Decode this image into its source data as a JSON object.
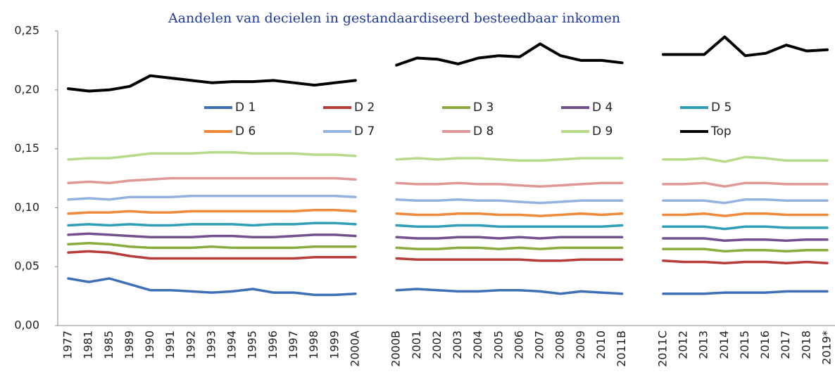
{
  "chart_data": {
    "type": "line",
    "title": "Aandelen van decielen in gestandaardiseerd besteedbaar inkomen",
    "categories": [
      "1977",
      "1981",
      "1985",
      "1989",
      "1990",
      "1991",
      "1992",
      "1993",
      "1994",
      "1995",
      "1996",
      "1997",
      "1998",
      "1999",
      "2000A",
      null,
      "2000B",
      "2001",
      "2002",
      "2003",
      "2004",
      "2005",
      "2006",
      "2007",
      "2008",
      "2009",
      "2010",
      "2011B",
      null,
      "2011C",
      "2012",
      "2013",
      "2014",
      "2015",
      "2016",
      "2017",
      "2018",
      "2019*"
    ],
    "ylim": [
      0,
      0.25
    ],
    "yticks": [
      {
        "value": 0,
        "label": "0,00"
      },
      {
        "value": 0.05,
        "label": "0,05"
      },
      {
        "value": 0.1,
        "label": "0,10"
      },
      {
        "value": 0.15,
        "label": "0,15"
      },
      {
        "value": 0.2,
        "label": "0,20"
      },
      {
        "value": 0.25,
        "label": "0,25"
      }
    ],
    "grid": false,
    "legend": "center",
    "series": [
      {
        "name": "D 1",
        "color": "#3f6fb5",
        "values": [
          0.04,
          0.037,
          0.04,
          0.035,
          0.03,
          0.03,
          0.029,
          0.028,
          0.029,
          0.031,
          0.028,
          0.028,
          0.026,
          0.026,
          0.027,
          null,
          0.03,
          0.031,
          0.03,
          0.029,
          0.029,
          0.03,
          0.03,
          0.029,
          0.027,
          0.029,
          0.028,
          0.027,
          null,
          0.027,
          0.027,
          0.027,
          0.028,
          0.028,
          0.028,
          0.029,
          0.029,
          0.029
        ]
      },
      {
        "name": "D 2",
        "color": "#b83d3a",
        "values": [
          0.062,
          0.063,
          0.062,
          0.059,
          0.057,
          0.057,
          0.057,
          0.057,
          0.057,
          0.057,
          0.057,
          0.057,
          0.058,
          0.058,
          0.058,
          null,
          0.057,
          0.056,
          0.056,
          0.056,
          0.056,
          0.056,
          0.056,
          0.055,
          0.055,
          0.056,
          0.056,
          0.056,
          null,
          0.055,
          0.054,
          0.054,
          0.053,
          0.054,
          0.054,
          0.053,
          0.054,
          0.053
        ]
      },
      {
        "name": "D 3",
        "color": "#8aac3e",
        "values": [
          0.069,
          0.07,
          0.069,
          0.067,
          0.066,
          0.066,
          0.066,
          0.067,
          0.066,
          0.066,
          0.066,
          0.066,
          0.067,
          0.067,
          0.067,
          null,
          0.066,
          0.065,
          0.065,
          0.066,
          0.066,
          0.065,
          0.066,
          0.065,
          0.066,
          0.066,
          0.066,
          0.066,
          null,
          0.065,
          0.065,
          0.065,
          0.063,
          0.064,
          0.064,
          0.063,
          0.064,
          0.064
        ]
      },
      {
        "name": "D 4",
        "color": "#74508f",
        "values": [
          0.077,
          0.078,
          0.077,
          0.076,
          0.075,
          0.075,
          0.075,
          0.076,
          0.076,
          0.075,
          0.075,
          0.076,
          0.077,
          0.077,
          0.076,
          null,
          0.075,
          0.074,
          0.074,
          0.075,
          0.075,
          0.074,
          0.075,
          0.074,
          0.075,
          0.075,
          0.075,
          0.075,
          null,
          0.074,
          0.074,
          0.074,
          0.072,
          0.073,
          0.073,
          0.072,
          0.073,
          0.073
        ]
      },
      {
        "name": "D 5",
        "color": "#2f9fb8",
        "values": [
          0.085,
          0.086,
          0.085,
          0.086,
          0.085,
          0.085,
          0.086,
          0.086,
          0.086,
          0.085,
          0.086,
          0.086,
          0.087,
          0.087,
          0.086,
          null,
          0.085,
          0.084,
          0.084,
          0.085,
          0.085,
          0.084,
          0.084,
          0.084,
          0.084,
          0.084,
          0.084,
          0.085,
          null,
          0.084,
          0.084,
          0.084,
          0.082,
          0.084,
          0.084,
          0.083,
          0.083,
          0.083
        ]
      },
      {
        "name": "D 6",
        "color": "#f0893a",
        "values": [
          0.095,
          0.096,
          0.096,
          0.097,
          0.096,
          0.096,
          0.097,
          0.097,
          0.097,
          0.097,
          0.097,
          0.097,
          0.098,
          0.098,
          0.097,
          null,
          0.095,
          0.094,
          0.094,
          0.095,
          0.095,
          0.094,
          0.094,
          0.093,
          0.094,
          0.095,
          0.094,
          0.095,
          null,
          0.094,
          0.094,
          0.095,
          0.093,
          0.095,
          0.095,
          0.094,
          0.094,
          0.094
        ]
      },
      {
        "name": "D 7",
        "color": "#94b2df",
        "values": [
          0.107,
          0.108,
          0.107,
          0.109,
          0.109,
          0.109,
          0.11,
          0.11,
          0.11,
          0.11,
          0.11,
          0.11,
          0.11,
          0.11,
          0.109,
          null,
          0.107,
          0.106,
          0.106,
          0.107,
          0.106,
          0.106,
          0.105,
          0.104,
          0.105,
          0.106,
          0.106,
          0.106,
          null,
          0.106,
          0.106,
          0.106,
          0.104,
          0.107,
          0.107,
          0.106,
          0.106,
          0.106
        ]
      },
      {
        "name": "D 8",
        "color": "#e09896",
        "values": [
          0.121,
          0.122,
          0.121,
          0.123,
          0.124,
          0.125,
          0.125,
          0.125,
          0.125,
          0.125,
          0.125,
          0.125,
          0.125,
          0.125,
          0.124,
          null,
          0.121,
          0.12,
          0.12,
          0.121,
          0.12,
          0.12,
          0.119,
          0.118,
          0.119,
          0.12,
          0.121,
          0.121,
          null,
          0.12,
          0.12,
          0.121,
          0.118,
          0.121,
          0.121,
          0.12,
          0.12,
          0.12
        ]
      },
      {
        "name": "D 9",
        "color": "#b5da8a",
        "values": [
          0.141,
          0.142,
          0.142,
          0.144,
          0.146,
          0.146,
          0.146,
          0.147,
          0.147,
          0.146,
          0.146,
          0.146,
          0.145,
          0.145,
          0.144,
          null,
          0.141,
          0.142,
          0.141,
          0.142,
          0.142,
          0.141,
          0.14,
          0.14,
          0.141,
          0.142,
          0.142,
          0.142,
          null,
          0.141,
          0.141,
          0.142,
          0.139,
          0.143,
          0.142,
          0.14,
          0.14,
          0.14
        ]
      },
      {
        "name": "Top",
        "color": "#000000",
        "values": [
          0.201,
          0.199,
          0.2,
          0.203,
          0.212,
          0.21,
          0.208,
          0.206,
          0.207,
          0.207,
          0.208,
          0.206,
          0.204,
          0.206,
          0.208,
          null,
          0.221,
          0.227,
          0.226,
          0.222,
          0.227,
          0.229,
          0.228,
          0.239,
          0.229,
          0.225,
          0.225,
          0.223,
          null,
          0.23,
          0.23,
          0.23,
          0.245,
          0.229,
          0.231,
          0.238,
          0.233,
          0.234
        ]
      }
    ]
  }
}
